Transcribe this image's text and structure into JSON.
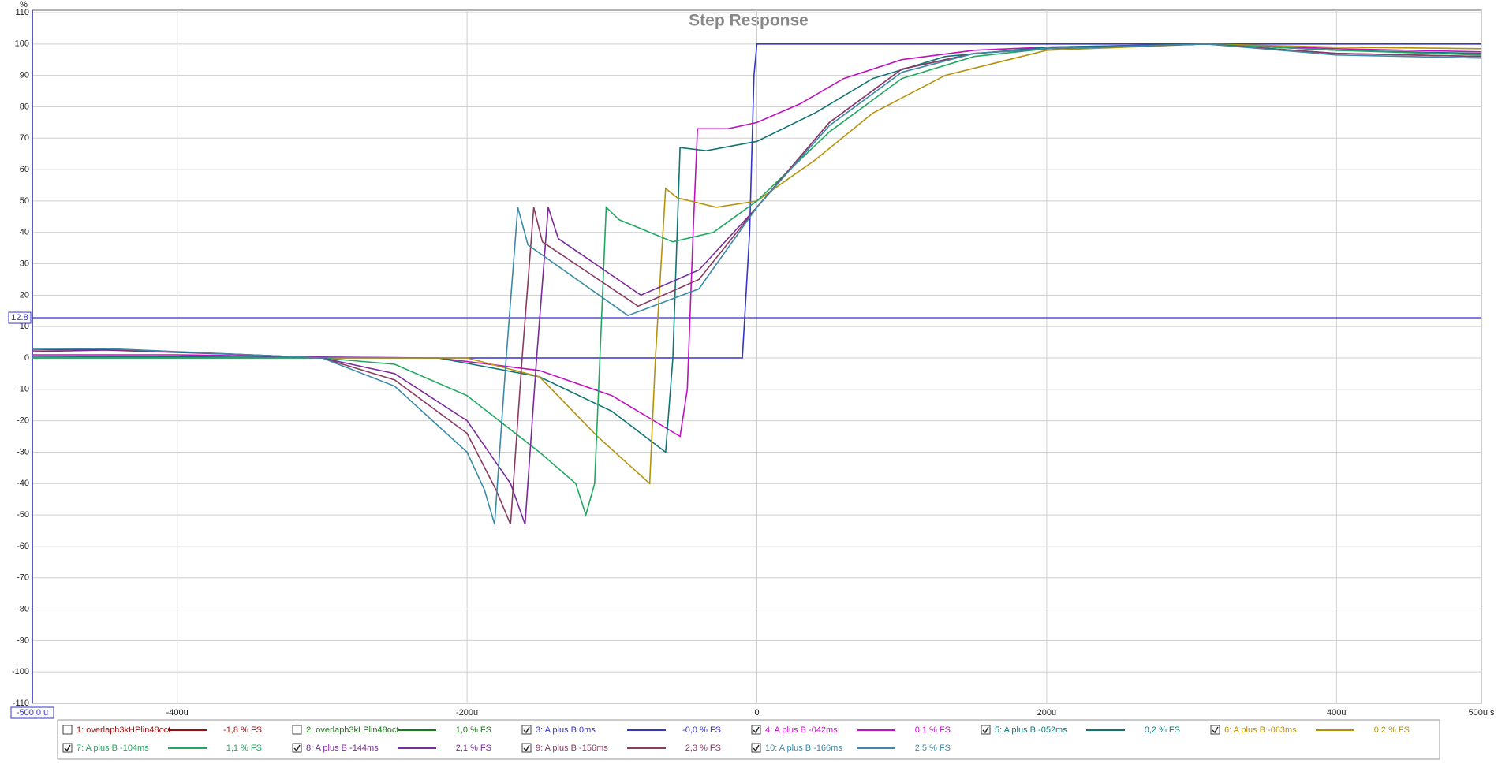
{
  "chart_data": {
    "type": "line",
    "title": "Step Response",
    "y_unit_label": "%",
    "xlim": [
      -500,
      500
    ],
    "ylim": [
      -110,
      110
    ],
    "xticks": [
      {
        "value": -400,
        "label": "-400u"
      },
      {
        "value": -200,
        "label": "-200u"
      },
      0,
      {
        "value": 200,
        "label": "200u"
      },
      {
        "value": 400,
        "label": "400u"
      },
      {
        "value": 500,
        "label": "500u s"
      }
    ],
    "yticks": [
      110,
      100,
      90,
      80,
      70,
      60,
      50,
      40,
      30,
      20,
      10,
      0,
      -10,
      -20,
      -30,
      -40,
      -50,
      -60,
      -70,
      -80,
      -90,
      -100,
      -110
    ],
    "grid": true,
    "cursor": {
      "x": -500,
      "x_label": "-500,0 u",
      "y": 12.8
    },
    "series": [
      {
        "name": "1: overlaph3kHPlin48oct",
        "color": "#9a1010",
        "fs_label": "-1,8 % FS",
        "checked": false
      },
      {
        "name": "2: overlaph3kLPlin48oct",
        "color": "#1a7a1a",
        "fs_label": "1,0 % FS",
        "checked": false
      },
      {
        "name": "3: A plus B 0ms",
        "color": "#3535c8",
        "fs_label": "-0,0 % FS",
        "checked": true,
        "x": [
          -500,
          -10,
          -5,
          -2,
          0,
          500
        ],
        "values": [
          0,
          0,
          40,
          90,
          100,
          100
        ]
      },
      {
        "name": "4: A plus B -042ms",
        "color": "#c010c0",
        "fs_label": "0,1 % FS",
        "checked": true,
        "x": [
          -500,
          -400,
          -300,
          -220,
          -150,
          -100,
          -53,
          -48,
          -44,
          -41,
          -20,
          0,
          30,
          60,
          100,
          150,
          200,
          310,
          400,
          500
        ],
        "values": [
          1,
          1,
          0.3,
          0,
          -4,
          -12,
          -25,
          -10,
          40,
          73,
          73,
          75,
          81,
          89,
          95,
          98,
          99,
          100,
          98.5,
          97.5
        ]
      },
      {
        "name": "5: A plus B -052ms",
        "color": "#117575",
        "fs_label": "0,2 % FS",
        "checked": true,
        "x": [
          -500,
          -220,
          -150,
          -100,
          -63,
          -58,
          -53,
          -35,
          0,
          40,
          80,
          130,
          200,
          310,
          400,
          500
        ],
        "values": [
          0.5,
          0,
          -6,
          -17,
          -30,
          0,
          67,
          66,
          69,
          78,
          89,
          96,
          99,
          100,
          98,
          97
        ]
      },
      {
        "name": "6: A plus B -063ms",
        "color": "#b5920c",
        "fs_label": "0,2 % FS",
        "checked": true,
        "x": [
          -500,
          -300,
          -200,
          -150,
          -110,
          -74,
          -70,
          -63,
          -55,
          -28,
          0,
          40,
          80,
          130,
          200,
          310,
          400,
          500
        ],
        "values": [
          0,
          0,
          0,
          -6,
          -25,
          -40,
          0,
          54,
          51,
          48,
          50,
          63,
          78,
          90,
          98,
          100,
          99,
          98.5
        ]
      },
      {
        "name": "7: A plus B -104ms",
        "color": "#20a860",
        "fs_label": "1,1 % FS",
        "checked": true,
        "x": [
          -500,
          -300,
          -250,
          -200,
          -150,
          -125,
          -118,
          -112,
          -104,
          -95,
          -58,
          -30,
          0,
          50,
          100,
          150,
          200,
          310,
          400,
          500
        ],
        "values": [
          0,
          0,
          -2,
          -12,
          -30,
          -40,
          -50,
          -40,
          48,
          44,
          37,
          40,
          50,
          72,
          89,
          96,
          98.5,
          100,
          98,
          96.5
        ]
      },
      {
        "name": "8: A plus B -144ms",
        "color": "#7a2a9a",
        "fs_label": "2,1 % FS",
        "checked": true,
        "x": [
          -500,
          -450,
          -350,
          -300,
          -250,
          -200,
          -170,
          -160,
          -152,
          -144,
          -137,
          -80,
          -40,
          0,
          50,
          100,
          150,
          200,
          310,
          400,
          500
        ],
        "values": [
          2,
          2.5,
          1,
          0,
          -5,
          -20,
          -40,
          -53,
          0,
          48,
          38,
          20,
          28,
          48,
          75,
          92,
          97,
          98.5,
          100,
          97,
          96
        ]
      },
      {
        "name": "9: A plus B -156ms",
        "color": "#8b3a62",
        "fs_label": "2,3 % FS",
        "checked": true,
        "x": [
          -500,
          -450,
          -350,
          -300,
          -250,
          -200,
          -180,
          -170,
          -162,
          -154,
          -148,
          -82,
          -40,
          0,
          50,
          100,
          150,
          200,
          310,
          400,
          500
        ],
        "values": [
          2.5,
          2.8,
          1,
          0,
          -7,
          -24,
          -42,
          -53,
          0,
          48,
          37,
          16.5,
          25,
          48,
          75,
          92,
          97,
          98.5,
          100,
          97,
          96
        ]
      },
      {
        "name": "10: A plus B -166ms",
        "color": "#3a8aa8",
        "fs_label": "2,5 % FS",
        "checked": true,
        "x": [
          -500,
          -450,
          -350,
          -300,
          -250,
          -200,
          -188,
          -181,
          -173,
          -165,
          -158,
          -89,
          -40,
          0,
          50,
          100,
          150,
          200,
          310,
          400,
          500
        ],
        "values": [
          3,
          3,
          1,
          0,
          -9,
          -30,
          -42,
          -53,
          0,
          48,
          36,
          13.5,
          22,
          48,
          74,
          91,
          97,
          98.5,
          100,
          96.5,
          95.5
        ]
      }
    ]
  }
}
